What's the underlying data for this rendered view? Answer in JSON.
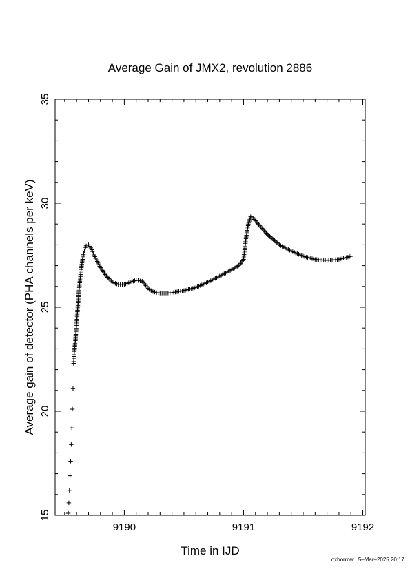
{
  "footer": {
    "user": "oxborrow",
    "timestamp": "5–Mar–2025 20:17"
  },
  "chart_data": {
    "type": "scatter",
    "marker": "plus",
    "marker_color": "#000000",
    "title": "Average Gain of JMX2, revolution 2886",
    "xlabel": "Time in IJD",
    "ylabel": "Average gain of detector (PHA channels per keV)",
    "xlim": [
      9189.42,
      9192.02
    ],
    "ylim": [
      15,
      35
    ],
    "xticks": [
      9190,
      9191,
      9192
    ],
    "yticks": [
      15,
      20,
      25,
      30,
      35
    ],
    "xtick_labels": [
      "9190",
      "9191",
      "9192"
    ],
    "ytick_labels": [
      "15",
      "20",
      "25",
      "30",
      "35"
    ],
    "grid": false,
    "legend": "none",
    "series": [
      {
        "name": "",
        "x": [
          9189.53,
          9189.535,
          9189.54,
          9189.545,
          9189.55,
          9189.555,
          9189.56,
          9189.565,
          9189.57,
          9189.575,
          9189.58,
          9189.59,
          9189.6,
          9189.61,
          9189.62,
          9189.63,
          9189.64,
          9189.65,
          9189.66,
          9189.67,
          9189.68,
          9189.7,
          9189.72,
          9189.74,
          9189.76,
          9189.8,
          9189.85,
          9189.9,
          9189.95,
          9190.0,
          9190.05,
          9190.1,
          9190.15,
          9190.18,
          9190.21,
          9190.24,
          9190.27,
          9190.3,
          9190.35,
          9190.4,
          9190.5,
          9190.6,
          9190.7,
          9190.8,
          9190.9,
          9190.97,
          9191.0,
          9191.02,
          9191.04,
          9191.06,
          9191.08,
          9191.1,
          9191.2,
          9191.3,
          9191.4,
          9191.5,
          9191.6,
          9191.7,
          9191.8,
          9191.9
        ],
        "y": [
          15.1,
          15.6,
          16.2,
          16.9,
          17.6,
          18.4,
          19.2,
          20.1,
          21.1,
          22.3,
          22.8,
          23.4,
          24.2,
          25.0,
          25.8,
          26.4,
          26.9,
          27.3,
          27.6,
          27.8,
          27.95,
          28.0,
          27.85,
          27.6,
          27.35,
          26.9,
          26.5,
          26.2,
          26.1,
          26.1,
          26.2,
          26.3,
          26.25,
          26.05,
          25.85,
          25.75,
          25.7,
          25.68,
          25.68,
          25.7,
          25.8,
          25.95,
          26.2,
          26.5,
          26.8,
          27.05,
          27.3,
          28.3,
          29.0,
          29.35,
          29.3,
          29.15,
          28.5,
          28.0,
          27.7,
          27.45,
          27.3,
          27.25,
          27.3,
          27.45
        ]
      }
    ]
  }
}
